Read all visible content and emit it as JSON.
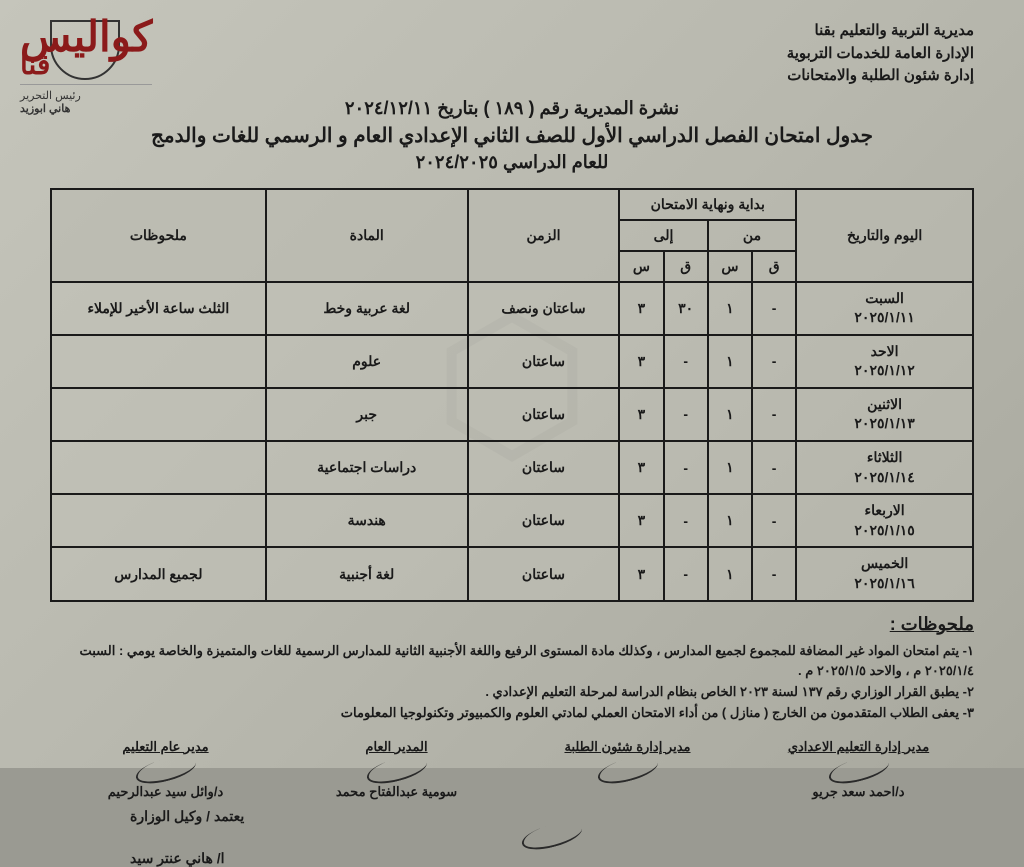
{
  "brand": {
    "main": "كواليس",
    "city": "قنا",
    "editor_label": "رئيس التحرير",
    "editor_name": "هاني ابوزيد"
  },
  "ministry": {
    "line1": "مديرية التربية والتعليم بقنا",
    "line2": "الإدارة العامة للخدمات التربوية",
    "line3": "إدارة شئون الطلبة والامتحانات"
  },
  "title": {
    "line1": "نشرة المديرية رقم ( ١٨٩ ) بتاريخ ٢٠٢٤/١٢/١١",
    "line2": "جدول امتحان الفصل الدراسي الأول للصف الثاني الإعدادي العام و الرسمي للغات والدمج",
    "line3": "للعام الدراسي ٢٠٢٤/٢٠٢٥"
  },
  "table": {
    "headers": {
      "day_date": "اليوم والتاريخ",
      "exam_time": "بداية ونهاية الامتحان",
      "from": "من",
      "to": "إلى",
      "q": "ق",
      "s": "س",
      "duration": "الزمن",
      "subject": "المادة",
      "notes": "ملحوظات"
    },
    "rows": [
      {
        "day": "السبت",
        "date": "٢٠٢٥/١/١١",
        "from_q": "-",
        "from_s": "١",
        "to_q": "٣٠",
        "to_s": "٣",
        "duration": "ساعتان ونصف",
        "subject": "لغة عربية وخط",
        "note": "الثلث ساعة الأخير للإملاء"
      },
      {
        "day": "الاحد",
        "date": "٢٠٢٥/١/١٢",
        "from_q": "-",
        "from_s": "١",
        "to_q": "-",
        "to_s": "٣",
        "duration": "ساعتان",
        "subject": "علوم",
        "note": ""
      },
      {
        "day": "الاثنين",
        "date": "٢٠٢٥/١/١٣",
        "from_q": "-",
        "from_s": "١",
        "to_q": "-",
        "to_s": "٣",
        "duration": "ساعتان",
        "subject": "جبر",
        "note": ""
      },
      {
        "day": "الثلاثاء",
        "date": "٢٠٢٥/١/١٤",
        "from_q": "-",
        "from_s": "١",
        "to_q": "-",
        "to_s": "٣",
        "duration": "ساعتان",
        "subject": "دراسات اجتماعية",
        "note": ""
      },
      {
        "day": "الاربعاء",
        "date": "٢٠٢٥/١/١٥",
        "from_q": "-",
        "from_s": "١",
        "to_q": "-",
        "to_s": "٣",
        "duration": "ساعتان",
        "subject": "هندسة",
        "note": ""
      },
      {
        "day": "الخميس",
        "date": "٢٠٢٥/١/١٦",
        "from_q": "-",
        "from_s": "١",
        "to_q": "-",
        "to_s": "٣",
        "duration": "ساعتان",
        "subject": "لغة أجنبية",
        "note": "لجميع المدارس"
      }
    ]
  },
  "notes_title": "ملحوظات :",
  "notes": [
    "١- يتم امتحان المواد غير المضافة للمجموع لجميع المدارس ، وكذلك مادة المستوى الرفيع واللغة الأجنبية الثانية للمدارس الرسمية للغات والمتميزة والخاصة يومي : السبت ٢٠٢٥/١/٤ م ، والاحد ٢٠٢٥/١/٥ م .",
    "٢- يطبق القرار الوزاري رقم ١٣٧ لسنة ٢٠٢٣ الخاص بنظام الدراسة لمرحلة التعليم الإعدادي .",
    "٣- يعفى الطلاب المتقدمون من الخارج ( منازل ) من أداء الامتحان العملي لمادتي العلوم والكمبيوتر وتكنولوجيا المعلومات"
  ],
  "signatures": [
    {
      "title": "مدير إدارة التعليم الاعدادي",
      "name": "د/احمد سعد جريو"
    },
    {
      "title": "مدير إدارة شئون الطلبة",
      "name": ""
    },
    {
      "title": "المدير العام",
      "name": "سومية عبدالفتاح محمد"
    },
    {
      "title": "مدير عام التعليم",
      "name": "د/وائل سيد عبدالرحيم"
    }
  ],
  "approve": {
    "label": "يعتمد / وكيل الوزارة",
    "name": "ا/ هاني عنتر سيد"
  }
}
